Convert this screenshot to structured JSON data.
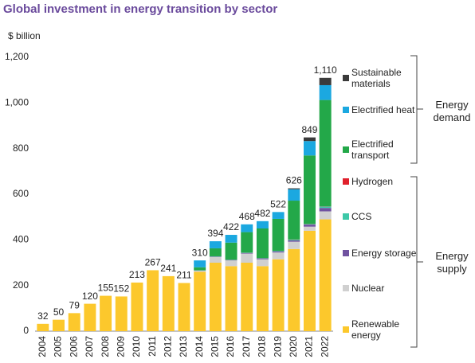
{
  "chart_data": {
    "type": "stacked_bar",
    "title": "Global investment in energy transition by sector",
    "y_axis_label": "$ billion",
    "categories": [
      "2004",
      "2005",
      "2006",
      "2007",
      "2008",
      "2009",
      "2010",
      "2011",
      "2012",
      "2013",
      "2014",
      "2015",
      "2016",
      "2017",
      "2018",
      "2019",
      "2020",
      "2021",
      "2022"
    ],
    "series": [
      {
        "name": "Renewable energy",
        "color": "#fcc82c",
        "values": [
          32,
          50,
          79,
          120,
          155,
          152,
          213,
          267,
          241,
          211,
          260,
          300,
          285,
          300,
          285,
          315,
          360,
          440,
          490
        ]
      },
      {
        "name": "Nuclear",
        "color": "#d0d0d0",
        "values": [
          0,
          0,
          0,
          0,
          0,
          0,
          0,
          0,
          0,
          0,
          5,
          25,
          25,
          40,
          30,
          30,
          32,
          18,
          35
        ]
      },
      {
        "name": "Energy storage",
        "color": "#7052a0",
        "values": [
          0,
          0,
          0,
          0,
          0,
          0,
          0,
          0,
          0,
          0,
          1,
          2,
          2,
          3,
          4,
          5,
          6,
          9,
          15
        ]
      },
      {
        "name": "CCS",
        "color": "#3dc8a8",
        "values": [
          0,
          0,
          0,
          0,
          0,
          0,
          0,
          0,
          0,
          0,
          1,
          1,
          1,
          1,
          1,
          2,
          3,
          2,
          6
        ]
      },
      {
        "name": "Hydrogen",
        "color": "#e0202c",
        "values": [
          0,
          0,
          0,
          0,
          0,
          0,
          0,
          0,
          0,
          0,
          0,
          0,
          0,
          0,
          0,
          0,
          1,
          1,
          1
        ]
      },
      {
        "name": "Electrified transport",
        "color": "#23a849",
        "values": [
          0,
          0,
          0,
          0,
          0,
          0,
          0,
          0,
          0,
          0,
          13,
          35,
          75,
          90,
          130,
          140,
          170,
          300,
          466
        ]
      },
      {
        "name": "Electrified heat",
        "color": "#1ba8e0",
        "values": [
          0,
          0,
          0,
          0,
          0,
          0,
          0,
          0,
          0,
          0,
          30,
          31,
          34,
          34,
          32,
          30,
          50,
          63,
          65
        ]
      },
      {
        "name": "Sustainable materials",
        "color": "#3a3a3a",
        "values": [
          0,
          0,
          0,
          0,
          0,
          0,
          0,
          0,
          0,
          0,
          0,
          0,
          0,
          0,
          0,
          0,
          4,
          16,
          32
        ]
      }
    ],
    "total_labels": [
      {
        "value": 32,
        "label": "32"
      },
      {
        "value": 50,
        "label": "50"
      },
      {
        "value": 79,
        "label": "79"
      },
      {
        "value": 120,
        "label": "120"
      },
      {
        "value": 155,
        "label": "155"
      },
      {
        "value": 152,
        "label": "152"
      },
      {
        "value": 213,
        "label": "213"
      },
      {
        "value": 267,
        "label": "267"
      },
      {
        "value": 241,
        "label": "241"
      },
      {
        "value": 211,
        "label": "211"
      },
      {
        "value": 310,
        "label": "310"
      },
      {
        "value": 394,
        "label": "394"
      },
      {
        "value": 422,
        "label": "422"
      },
      {
        "value": 468,
        "label": "468"
      },
      {
        "value": 482,
        "label": "482"
      },
      {
        "value": 522,
        "label": "522"
      },
      {
        "value": 626,
        "label": "626"
      },
      {
        "value": 849,
        "label": "849"
      },
      {
        "value": 1110,
        "label": "1,110"
      }
    ],
    "groups": [
      {
        "label": "Energy demand"
      },
      {
        "label": "Energy supply"
      }
    ],
    "ylim": [
      0,
      1200
    ],
    "yticks": [
      0,
      200,
      400,
      600,
      800,
      {
        "value": 1000,
        "label": "1,000"
      },
      {
        "value": 1200,
        "label": "1,200"
      }
    ],
    "grid": false
  }
}
